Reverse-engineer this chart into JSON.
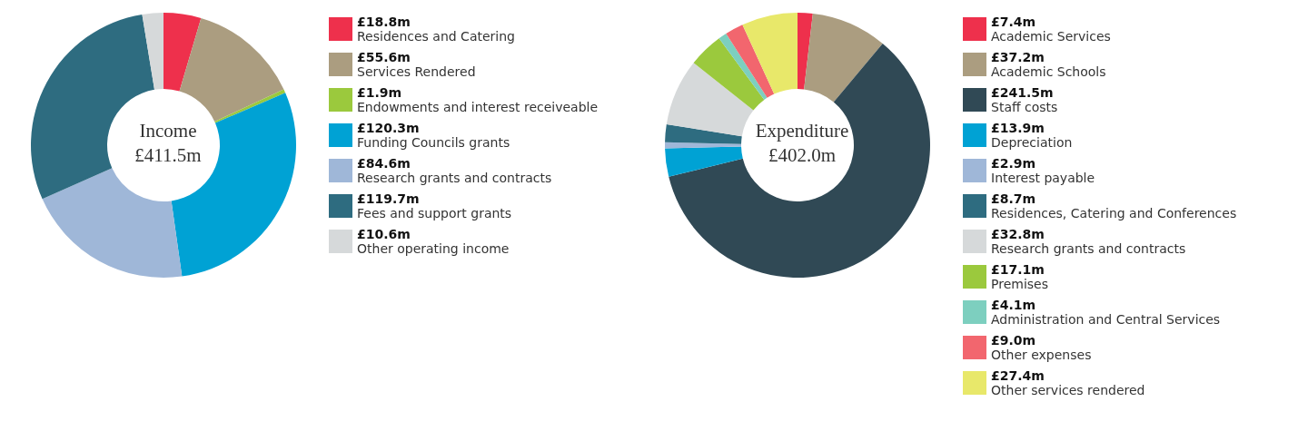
{
  "chart_data": [
    {
      "type": "donut",
      "title": "Income",
      "subtitle": "£411.5m",
      "legend": "right",
      "categories": [
        "Residences and Catering",
        "Services Rendered",
        "Endowments and interest receiveable",
        "Funding Councils grants",
        "Research grants and contracts",
        "Fees and support grants",
        "Other operating income"
      ],
      "values": [
        18.8,
        55.6,
        1.9,
        120.3,
        84.6,
        119.7,
        10.6
      ],
      "value_labels": [
        "£18.8m",
        "£55.6m",
        "£1.9m",
        "£120.3m",
        "£84.6m",
        "£119.7m",
        "£10.6m"
      ],
      "colors": [
        "#ee304c",
        "#ab9d80",
        "#9bc93d",
        "#00a2d4",
        "#9fb7d8",
        "#2e6c80",
        "#d6d9da"
      ]
    },
    {
      "type": "donut",
      "title": "Expenditure",
      "subtitle": "£402.0m",
      "legend": "right",
      "categories": [
        "Academic Services",
        "Academic Schools",
        "Staff costs",
        "Depreciation",
        "Interest payable",
        "Residences, Catering and Conferences",
        "Research grants and contracts",
        "Premises",
        "Administration and Central Services",
        "Other expenses",
        "Other services rendered"
      ],
      "values": [
        7.4,
        37.2,
        241.5,
        13.9,
        2.9,
        8.7,
        32.8,
        17.1,
        4.1,
        9.0,
        27.4
      ],
      "value_labels": [
        "£7.4m",
        "£37.2m",
        "£241.5m",
        "£13.9m",
        "£2.9m",
        "£8.7m",
        "£32.8m",
        "£17.1m",
        "£4.1m",
        "£9.0m",
        "£27.4m"
      ],
      "colors": [
        "#ee304c",
        "#ab9d80",
        "#304955",
        "#00a2d4",
        "#9fb7d8",
        "#2e6c80",
        "#d6d9da",
        "#9bc93d",
        "#7dcfbf",
        "#f2666e",
        "#e8e86a"
      ]
    }
  ]
}
